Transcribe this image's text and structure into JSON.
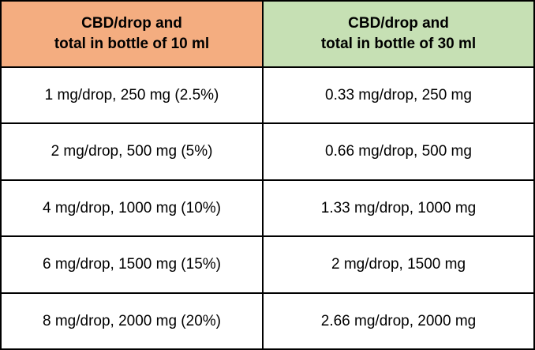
{
  "table": {
    "headers": [
      {
        "text": "CBD/drop and\ntotal in bottle of 10 ml",
        "bg": "#F4AD80"
      },
      {
        "text": "CBD/drop and\ntotal in bottle of 30 ml",
        "bg": "#C6E0B4"
      }
    ],
    "rows": [
      {
        "col1": "1 mg/drop, 250 mg (2.5%)",
        "col2": "0.33 mg/drop, 250 mg"
      },
      {
        "col1": "2 mg/drop, 500 mg (5%)",
        "col2": "0.66 mg/drop, 500 mg"
      },
      {
        "col1": "4 mg/drop, 1000 mg (10%)",
        "col2": "1.33 mg/drop, 1000 mg"
      },
      {
        "col1": "6 mg/drop, 1500 mg (15%)",
        "col2": "2 mg/drop, 1500 mg"
      },
      {
        "col1": "8 mg/drop, 2000 mg (20%)",
        "col2": "2.66 mg/drop, 2000 mg"
      }
    ],
    "colors": {
      "header_left_bg": "#F4AD80",
      "header_right_bg": "#C6E0B4",
      "border": "#000000",
      "cell_bg": "#FFFFFF",
      "text": "#000000"
    }
  },
  "chart_data": {
    "type": "table",
    "columns": [
      "CBD/drop and total in bottle of 10 ml",
      "CBD/drop and total in bottle of 30 ml"
    ],
    "rows": [
      [
        "1 mg/drop, 250 mg (2.5%)",
        "0.33 mg/drop, 250 mg"
      ],
      [
        "2 mg/drop, 500 mg (5%)",
        "0.66 mg/drop, 500 mg"
      ],
      [
        "4 mg/drop, 1000 mg (10%)",
        "1.33 mg/drop, 1000 mg"
      ],
      [
        "6 mg/drop, 1500 mg (15%)",
        "2 mg/drop, 1500 mg"
      ],
      [
        "8 mg/drop, 2000 mg (20%)",
        "2.66 mg/drop, 2000 mg"
      ]
    ],
    "title": "",
    "legend_position": "none",
    "grid": true
  }
}
